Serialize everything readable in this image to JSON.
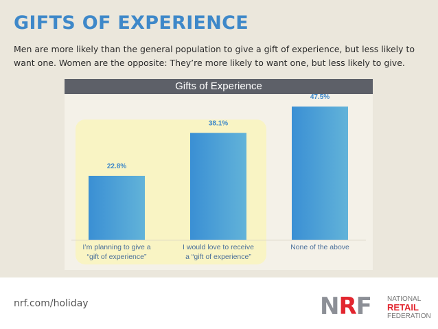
{
  "title": "GIFTS OF EXPERIENCE",
  "subtitle": "Men are more likely than the general population to give a gift of experience, but less likely to want one. Women are the opposite: They’re more likely to want one, but less likely to give.",
  "chart_data": {
    "type": "bar",
    "title": "Gifts of Experience",
    "categories": [
      [
        "I’m planning to give a",
        "“gift of experience”"
      ],
      [
        "I would love to receive",
        "a “gift of experience”"
      ],
      [
        "None of the above"
      ]
    ],
    "values": [
      22.8,
      38.1,
      47.5
    ],
    "data_labels": [
      "22.8%",
      "38.1%",
      "47.5%"
    ],
    "ylim": [
      0,
      50
    ],
    "xlabel": "",
    "ylabel": "",
    "grid": false,
    "bar_color_start": "#3a8fd4",
    "bar_color_end": "#62b3d9",
    "label_color": "#3e88c9",
    "highlight_color": "#f9f4c4"
  },
  "footer": {
    "url": "nrf.com/holiday",
    "logo": {
      "mark": "NRF",
      "line1": "NATIONAL",
      "line2": "RETAIL",
      "line3": "FEDERATION"
    }
  },
  "colors": {
    "accent": "#3e88c9",
    "header_bar": "#5d6068",
    "brand_red": "#e2262f"
  }
}
